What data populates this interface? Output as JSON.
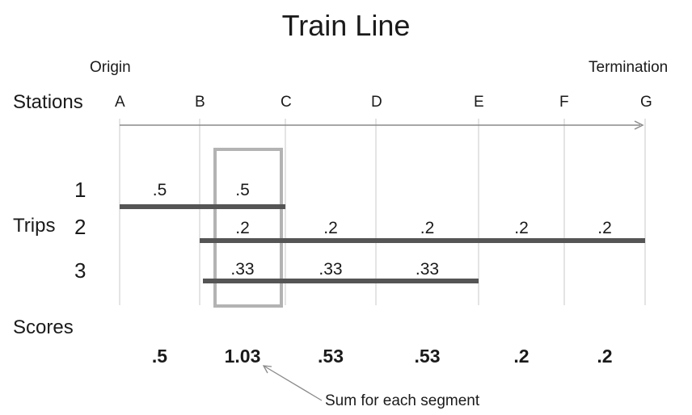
{
  "title": "Train Line",
  "origin_label": "Origin",
  "termination_label": "Termination",
  "stations_label": "Stations",
  "stations": [
    "A",
    "B",
    "C",
    "D",
    "E",
    "F",
    "G"
  ],
  "trips_label": "Trips",
  "trips": [
    {
      "number": "1",
      "from": "A",
      "to": "C",
      "segment_values": [
        ".5",
        ".5"
      ]
    },
    {
      "number": "2",
      "from": "B",
      "to": "G",
      "segment_values": [
        ".2",
        ".2",
        ".2",
        ".2",
        ".2"
      ]
    },
    {
      "number": "3",
      "from": "B",
      "to": "E",
      "segment_values": [
        ".33",
        ".33",
        ".33"
      ]
    }
  ],
  "scores_label": "Scores",
  "scores": [
    ".5",
    "1.03",
    ".53",
    ".53",
    ".2",
    ".2"
  ],
  "highlighted_segment": "B-C",
  "annotation": "Sum for each segment",
  "colors": {
    "trip_bar": "#555555",
    "highlight_box": "#b3b3b3",
    "grid_line": "#c8c8c8",
    "arrow": "#8a8a8a"
  }
}
